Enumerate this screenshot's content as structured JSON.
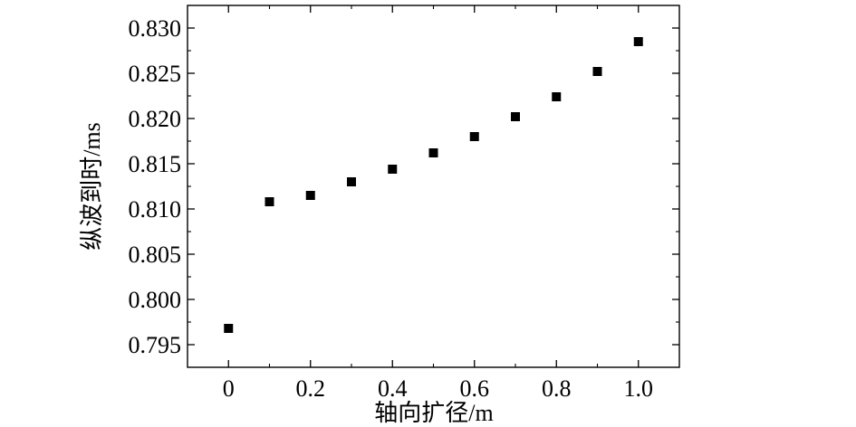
{
  "chart_data": {
    "type": "scatter",
    "title": "",
    "xlabel": "轴向扩径/m",
    "ylabel": "纵波到时/ms",
    "xlim": [
      -0.1,
      1.1
    ],
    "ylim": [
      0.7925,
      0.8325
    ],
    "x_ticks": [
      0,
      0.2,
      0.4,
      0.6,
      0.8,
      1.0
    ],
    "x_tick_labels": [
      "0",
      "0.2",
      "0.4",
      "0.6",
      "0.8",
      "1.0"
    ],
    "x_minor_ticks": [
      0.1,
      0.3,
      0.5,
      0.7,
      0.9
    ],
    "y_ticks": [
      0.795,
      0.8,
      0.805,
      0.81,
      0.815,
      0.82,
      0.825,
      0.83
    ],
    "y_tick_labels": [
      "0.795",
      "0.800",
      "0.805",
      "0.810",
      "0.815",
      "0.820",
      "0.825",
      "0.830"
    ],
    "grid": false,
    "marker": "square",
    "marker_color": "#000000",
    "series": [
      {
        "x": [
          0,
          0.1,
          0.2,
          0.3,
          0.4,
          0.5,
          0.6,
          0.7,
          0.8,
          0.9,
          1.0
        ],
        "y": [
          0.7968,
          0.8108,
          0.8115,
          0.813,
          0.8144,
          0.8162,
          0.818,
          0.8202,
          0.8224,
          0.8252,
          0.8285
        ]
      }
    ]
  }
}
